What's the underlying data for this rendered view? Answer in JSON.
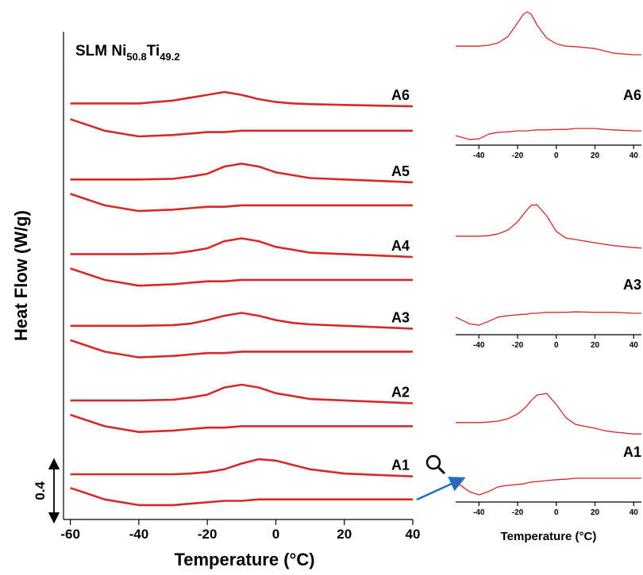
{
  "chart_data": [
    {
      "type": "line",
      "title": {
        "text": "SLM Ni",
        "sub1": "50.8",
        "mid": "Ti",
        "sub2": "49.2"
      },
      "x_label": "Temperature (°C)",
      "y_label": "Heat Flow (W/g)",
      "xlim": [
        -62,
        40
      ],
      "xticks": [
        -60,
        -40,
        -20,
        0,
        20,
        40
      ],
      "ylim": [
        0,
        3.4
      ],
      "scale_bar": 0.4,
      "color": "#d42a2a",
      "x": [
        -60,
        -50,
        -40,
        -30,
        -25,
        -20,
        -15,
        -10,
        -5,
        0,
        5,
        10,
        20,
        30,
        40
      ],
      "series": [
        {
          "name": "A1",
          "cooling": [
            0.315,
            0.315,
            0.315,
            0.315,
            0.32,
            0.33,
            0.35,
            0.39,
            0.42,
            0.41,
            0.38,
            0.35,
            0.32,
            0.31,
            0.3
          ],
          "heating": [
            0.22,
            0.14,
            0.1,
            0.1,
            0.11,
            0.12,
            0.13,
            0.13,
            0.14,
            0.14,
            0.14,
            0.14,
            0.14,
            0.14,
            0.14
          ]
        },
        {
          "name": "A2",
          "cooling": [
            0.83,
            0.83,
            0.83,
            0.835,
            0.85,
            0.87,
            0.92,
            0.94,
            0.92,
            0.88,
            0.86,
            0.84,
            0.83,
            0.82,
            0.81
          ],
          "heating": [
            0.73,
            0.65,
            0.61,
            0.62,
            0.63,
            0.64,
            0.64,
            0.65,
            0.65,
            0.65,
            0.65,
            0.65,
            0.65,
            0.65,
            0.65
          ]
        },
        {
          "name": "A3",
          "cooling": [
            1.35,
            1.35,
            1.35,
            1.355,
            1.365,
            1.39,
            1.42,
            1.44,
            1.42,
            1.39,
            1.37,
            1.36,
            1.35,
            1.34,
            1.33
          ],
          "heating": [
            1.25,
            1.17,
            1.13,
            1.14,
            1.15,
            1.16,
            1.16,
            1.17,
            1.17,
            1.17,
            1.17,
            1.17,
            1.17,
            1.17,
            1.17
          ]
        },
        {
          "name": "A4",
          "cooling": [
            1.85,
            1.85,
            1.85,
            1.855,
            1.87,
            1.89,
            1.94,
            1.96,
            1.94,
            1.9,
            1.88,
            1.86,
            1.85,
            1.84,
            1.83
          ],
          "heating": [
            1.75,
            1.67,
            1.63,
            1.64,
            1.65,
            1.66,
            1.66,
            1.67,
            1.67,
            1.67,
            1.67,
            1.67,
            1.67,
            1.67,
            1.67
          ]
        },
        {
          "name": "A5",
          "cooling": [
            2.37,
            2.37,
            2.37,
            2.375,
            2.39,
            2.41,
            2.46,
            2.48,
            2.46,
            2.42,
            2.4,
            2.38,
            2.37,
            2.36,
            2.35
          ],
          "heating": [
            2.27,
            2.19,
            2.15,
            2.16,
            2.17,
            2.18,
            2.18,
            2.19,
            2.19,
            2.19,
            2.19,
            2.19,
            2.19,
            2.19,
            2.19
          ]
        },
        {
          "name": "A6",
          "cooling": [
            2.9,
            2.9,
            2.9,
            2.92,
            2.94,
            2.96,
            2.98,
            2.96,
            2.93,
            2.91,
            2.9,
            2.895,
            2.89,
            2.885,
            2.88
          ],
          "heating": [
            2.79,
            2.71,
            2.67,
            2.68,
            2.69,
            2.7,
            2.7,
            2.71,
            2.71,
            2.71,
            2.71,
            2.71,
            2.71,
            2.71,
            2.71
          ]
        }
      ]
    },
    {
      "type": "line",
      "xlim": [
        -52,
        44
      ],
      "xticks": [
        -40,
        -20,
        0,
        20,
        40
      ],
      "ylim": [
        0.05,
        0.35
      ],
      "color": "#d42a2a",
      "x": [
        -52,
        -45,
        -40,
        -35,
        -30,
        -25,
        -20,
        -17,
        -15,
        -13,
        -10,
        -5,
        0,
        5,
        10,
        20,
        25,
        30,
        40,
        44
      ],
      "series": [
        {
          "name": "A6",
          "cooling": [
            0.258,
            0.258,
            0.258,
            0.26,
            0.265,
            0.278,
            0.307,
            0.325,
            0.33,
            0.325,
            0.303,
            0.275,
            0.263,
            0.258,
            0.257,
            0.253,
            0.248,
            0.243,
            0.24,
            0.24
          ],
          "heating": [
            0.07,
            0.062,
            0.063,
            0.073,
            0.077,
            0.078,
            0.08,
            0.08,
            0.08,
            0.081,
            0.082,
            0.082,
            0.083,
            0.083,
            0.085,
            0.085,
            0.083,
            0.082,
            0.08,
            0.08
          ]
        }
      ]
    },
    {
      "type": "line",
      "xlim": [
        -52,
        44
      ],
      "xticks": [
        -40,
        -20,
        0,
        20,
        40
      ],
      "ylim": [
        0.05,
        0.35
      ],
      "color": "#d42a2a",
      "x": [
        -52,
        -45,
        -40,
        -35,
        -30,
        -25,
        -20,
        -17,
        -15,
        -13,
        -10,
        -5,
        0,
        5,
        10,
        20,
        25,
        30,
        40,
        44
      ],
      "series": [
        {
          "name": "A3",
          "cooling": [
            0.257,
            0.257,
            0.257,
            0.258,
            0.262,
            0.27,
            0.287,
            0.303,
            0.313,
            0.322,
            0.323,
            0.3,
            0.267,
            0.253,
            0.25,
            0.243,
            0.24,
            0.237,
            0.233,
            0.232
          ],
          "heating": [
            0.087,
            0.073,
            0.07,
            0.078,
            0.087,
            0.09,
            0.092,
            0.093,
            0.093,
            0.095,
            0.095,
            0.097,
            0.097,
            0.097,
            0.098,
            0.097,
            0.097,
            0.097,
            0.095,
            0.095
          ]
        }
      ]
    },
    {
      "type": "line",
      "x_label": "Temperature (°C)",
      "xlim": [
        -52,
        44
      ],
      "xticks": [
        -40,
        -20,
        0,
        20,
        40
      ],
      "ylim": [
        0.05,
        0.35
      ],
      "color": "#d42a2a",
      "x": [
        -52,
        -45,
        -40,
        -35,
        -30,
        -25,
        -20,
        -17,
        -15,
        -13,
        -10,
        -5,
        0,
        5,
        10,
        20,
        25,
        30,
        40,
        44
      ],
      "series": [
        {
          "name": "A1",
          "cooling": [
            0.217,
            0.217,
            0.217,
            0.218,
            0.22,
            0.225,
            0.235,
            0.245,
            0.253,
            0.263,
            0.275,
            0.278,
            0.255,
            0.227,
            0.213,
            0.205,
            0.2,
            0.197,
            0.193,
            0.193
          ],
          "heating": [
            0.093,
            0.072,
            0.065,
            0.072,
            0.082,
            0.085,
            0.087,
            0.088,
            0.09,
            0.092,
            0.093,
            0.095,
            0.097,
            0.098,
            0.1,
            0.1,
            0.1,
            0.1,
            0.1,
            0.1
          ]
        }
      ]
    }
  ]
}
